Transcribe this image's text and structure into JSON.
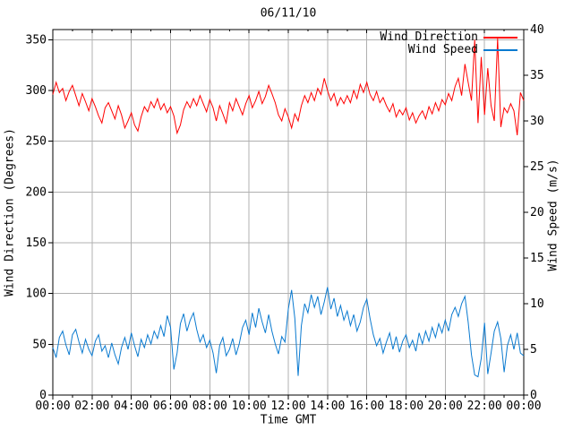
{
  "title": "06/11/10",
  "axes": {
    "x": {
      "label": "Time GMT",
      "tick_labels": [
        "00:00",
        "02:00",
        "04:00",
        "06:00",
        "08:00",
        "10:00",
        "12:00",
        "14:00",
        "16:00",
        "18:00",
        "20:00",
        "22:00",
        "00:00"
      ]
    },
    "y_left": {
      "label": "Wind Direction (Degrees)",
      "tick_labels": [
        "0",
        "50",
        "100",
        "150",
        "200",
        "250",
        "300",
        "350"
      ]
    },
    "y_right": {
      "label": "Wind Speed (m/s)",
      "tick_labels": [
        "0",
        "5",
        "10",
        "15",
        "20",
        "25",
        "30",
        "35",
        "40"
      ]
    }
  },
  "legend": [
    {
      "label": "Wind Direction",
      "color": "#ff0000"
    },
    {
      "label": "Wind Speed",
      "color": "#0a7ad0"
    }
  ],
  "colors": {
    "background": "#ffffff",
    "grid": "#b0b0b0",
    "border": "#000000",
    "wind_direction": "#ff0000",
    "wind_speed": "#0a7ad0"
  },
  "chart_data": {
    "type": "line",
    "title": "06/11/10",
    "xlabel": "Time GMT",
    "x_unit": "hours GMT",
    "x_range": [
      0,
      24
    ],
    "x_tick_interval_hours": 2,
    "x_minor_tick_interval_hours": 1,
    "sample_interval_minutes": 10,
    "grid": true,
    "legend_position": "top-right-inside",
    "y_left": {
      "label": "Wind Direction (Degrees)",
      "range": [
        0,
        360
      ],
      "tick_interval": 50,
      "last_labeled_tick": 350
    },
    "y_right": {
      "label": "Wind Speed (m/s)",
      "range": [
        0,
        40
      ],
      "tick_interval": 5
    },
    "series": [
      {
        "name": "Wind Direction",
        "axis": "left",
        "unit": "Degrees",
        "color": "#ff0000",
        "values": [
          296,
          308,
          298,
          302,
          290,
          299,
          305,
          295,
          285,
          297,
          289,
          280,
          292,
          284,
          275,
          268,
          283,
          288,
          280,
          272,
          285,
          276,
          263,
          270,
          278,
          266,
          260,
          274,
          284,
          279,
          289,
          283,
          292,
          281,
          287,
          278,
          284,
          275,
          258,
          266,
          281,
          289,
          283,
          292,
          285,
          295,
          287,
          279,
          291,
          283,
          270,
          285,
          277,
          268,
          288,
          280,
          292,
          284,
          276,
          287,
          295,
          283,
          290,
          299,
          287,
          294,
          305,
          297,
          288,
          276,
          270,
          282,
          274,
          263,
          277,
          270,
          285,
          295,
          288,
          298,
          290,
          302,
          296,
          312,
          300,
          290,
          297,
          285,
          293,
          287,
          295,
          288,
          300,
          292,
          306,
          298,
          308,
          296,
          290,
          299,
          288,
          293,
          285,
          279,
          287,
          274,
          281,
          276,
          283,
          271,
          278,
          268,
          275,
          280,
          272,
          284,
          277,
          288,
          280,
          291,
          286,
          297,
          290,
          304,
          312,
          295,
          326,
          308,
          290,
          350,
          268,
          333,
          276,
          322,
          285,
          270,
          351,
          264,
          283,
          278,
          287,
          280,
          256,
          298,
          290
        ]
      },
      {
        "name": "Wind Speed",
        "axis": "right",
        "unit": "m/s",
        "color": "#0a7ad0",
        "values": [
          5.2,
          4.1,
          6.3,
          7.0,
          5.5,
          4.4,
          6.6,
          7.2,
          5.8,
          4.6,
          6.1,
          5.0,
          4.3,
          5.9,
          6.6,
          4.8,
          5.4,
          4.1,
          5.7,
          4.4,
          3.4,
          5.2,
          6.3,
          5.0,
          6.8,
          5.4,
          4.2,
          6.1,
          5.2,
          6.6,
          5.6,
          7.0,
          6.2,
          7.6,
          6.4,
          8.7,
          7.4,
          2.8,
          4.6,
          7.8,
          8.9,
          7.0,
          8.2,
          9.0,
          7.2,
          5.8,
          6.6,
          5.2,
          6.0,
          4.6,
          2.4,
          5.4,
          6.3,
          4.3,
          5.0,
          6.2,
          4.4,
          5.6,
          7.4,
          8.2,
          6.6,
          9.0,
          7.4,
          9.5,
          8.0,
          6.8,
          8.8,
          7.0,
          5.6,
          4.5,
          6.4,
          5.8,
          9.4,
          11.5,
          8.4,
          2.1,
          7.6,
          10.0,
          9.0,
          11.0,
          9.6,
          10.8,
          8.8,
          10.2,
          11.8,
          9.4,
          10.6,
          8.6,
          9.8,
          8.2,
          9.2,
          7.6,
          8.8,
          7.0,
          8.0,
          9.6,
          10.5,
          8.4,
          6.6,
          5.4,
          6.2,
          4.6,
          5.8,
          6.8,
          5.0,
          6.4,
          4.7,
          5.9,
          6.6,
          5.2,
          6.0,
          4.8,
          6.8,
          5.6,
          7.0,
          5.9,
          7.4,
          6.3,
          7.8,
          6.8,
          8.2,
          7.0,
          8.8,
          9.6,
          8.6,
          10.0,
          10.8,
          8.0,
          4.4,
          2.2,
          2.0,
          4.0,
          7.9,
          2.3,
          4.6,
          7.0,
          8.0,
          6.2,
          2.5,
          5.4,
          6.6,
          5.0,
          6.8,
          4.6,
          4.3
        ]
      }
    ]
  }
}
